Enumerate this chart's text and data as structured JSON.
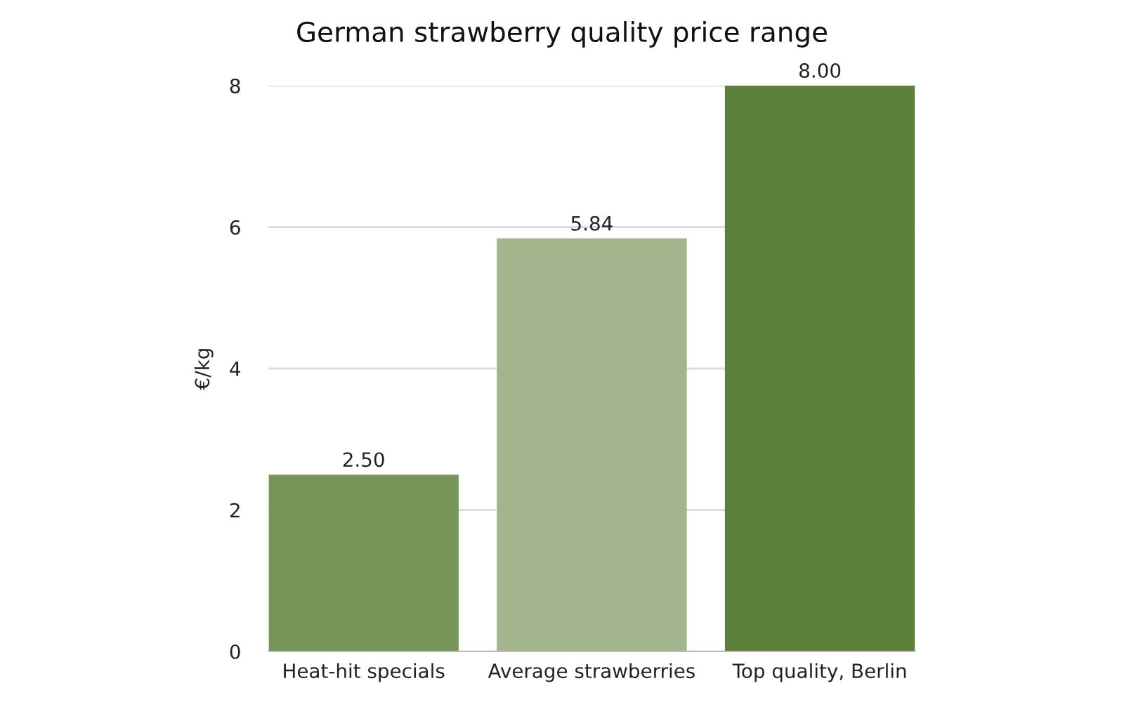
{
  "chart_data": {
    "type": "bar",
    "title": "German strawberry quality price range",
    "ylabel": "€/kg",
    "categories": [
      "Heat-hit specials",
      "Average strawberries",
      "Top quality, Berlin"
    ],
    "values": [
      2.5,
      5.84,
      8
    ],
    "colors": [
      "#779558",
      "#a3b58d",
      "#5c7f39"
    ],
    "value_labels": [
      "2.50",
      "5.84",
      "8.00"
    ],
    "ylim": [
      0,
      8
    ],
    "yticks": [
      0,
      2,
      4,
      6,
      8
    ],
    "grid": "y",
    "legend": false
  }
}
